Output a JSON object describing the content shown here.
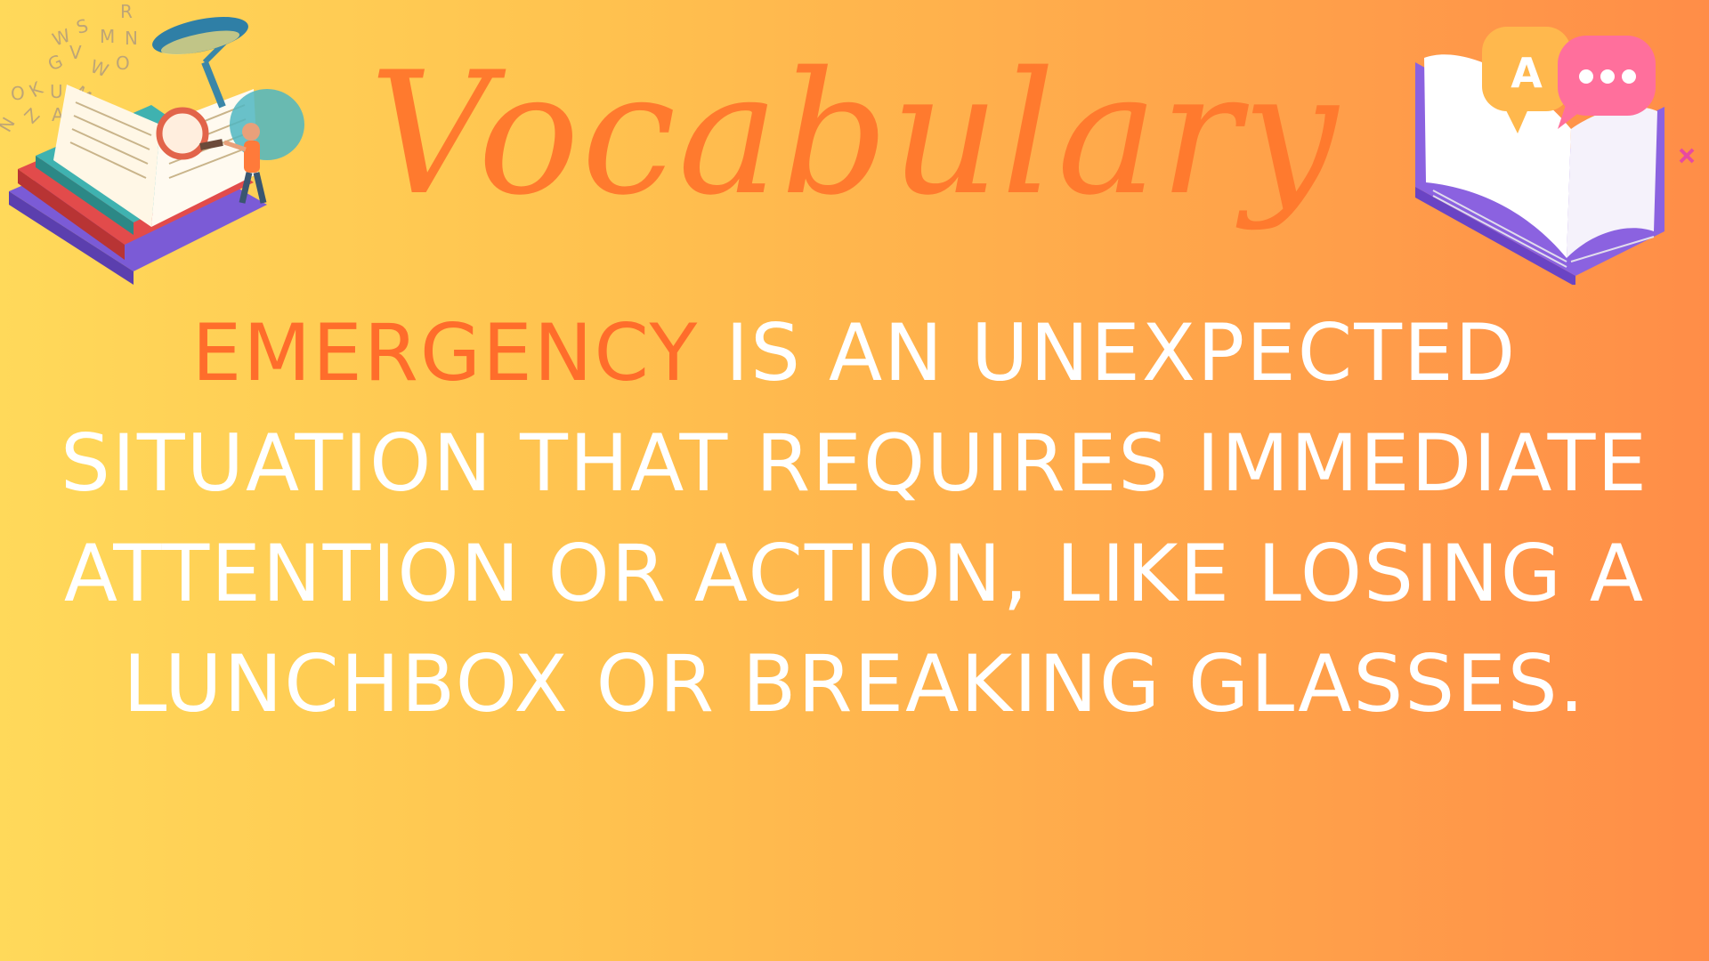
{
  "slide": {
    "title": "Vocabulary",
    "term": "EMERGENCY",
    "definition": " IS AN UNEXPECTED SITUATION THAT REQUIRES IMMEDIATE ATTENTION OR ACTION, LIKE LOSING A LUNCHBOX OR BREAKING GLASSES."
  },
  "illustrations": {
    "left": "book-study-illustration",
    "right": "book-speech-bubble-icon",
    "right_bubble_letter": "A"
  },
  "colors": {
    "background_start": "#ffd95a",
    "background_end": "#ff8d48",
    "title": "#ff7a2e",
    "term": "#ff6d2b",
    "definition": "#ffffff"
  }
}
